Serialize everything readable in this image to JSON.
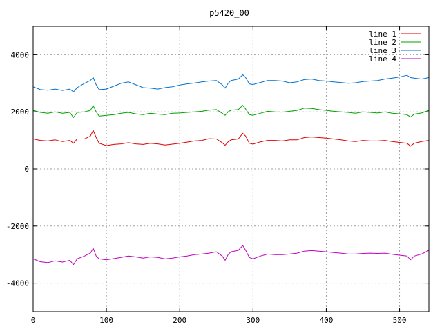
{
  "chart_data": {
    "type": "line",
    "title": "p5420_00",
    "xlabel": "",
    "ylabel": "",
    "xlim": [
      0,
      540
    ],
    "ylim": [
      -5000,
      5000
    ],
    "x_ticks": [
      0,
      100,
      200,
      300,
      400,
      500
    ],
    "y_ticks": [
      -4000,
      -2000,
      0,
      2000,
      4000
    ],
    "grid": true,
    "legend_position": "top-right",
    "series": [
      {
        "name": "line 1",
        "color": "#e00000",
        "points": [
          [
            0,
            1050
          ],
          [
            10,
            1000
          ],
          [
            20,
            980
          ],
          [
            30,
            1020
          ],
          [
            40,
            960
          ],
          [
            50,
            1000
          ],
          [
            55,
            900
          ],
          [
            60,
            1050
          ],
          [
            70,
            1050
          ],
          [
            78,
            1150
          ],
          [
            82,
            1350
          ],
          [
            86,
            1100
          ],
          [
            90,
            900
          ],
          [
            100,
            820
          ],
          [
            110,
            860
          ],
          [
            120,
            880
          ],
          [
            130,
            920
          ],
          [
            140,
            880
          ],
          [
            150,
            860
          ],
          [
            160,
            900
          ],
          [
            170,
            880
          ],
          [
            180,
            840
          ],
          [
            190,
            870
          ],
          [
            200,
            900
          ],
          [
            210,
            940
          ],
          [
            220,
            980
          ],
          [
            230,
            1000
          ],
          [
            240,
            1060
          ],
          [
            250,
            1050
          ],
          [
            258,
            920
          ],
          [
            262,
            830
          ],
          [
            266,
            950
          ],
          [
            270,
            1020
          ],
          [
            280,
            1050
          ],
          [
            286,
            1250
          ],
          [
            290,
            1150
          ],
          [
            295,
            900
          ],
          [
            300,
            870
          ],
          [
            310,
            950
          ],
          [
            320,
            1000
          ],
          [
            330,
            1000
          ],
          [
            340,
            980
          ],
          [
            350,
            1020
          ],
          [
            360,
            1020
          ],
          [
            370,
            1100
          ],
          [
            380,
            1120
          ],
          [
            390,
            1100
          ],
          [
            400,
            1080
          ],
          [
            410,
            1050
          ],
          [
            420,
            1020
          ],
          [
            430,
            980
          ],
          [
            440,
            960
          ],
          [
            450,
            1000
          ],
          [
            460,
            980
          ],
          [
            470,
            980
          ],
          [
            480,
            1000
          ],
          [
            490,
            960
          ],
          [
            500,
            930
          ],
          [
            510,
            900
          ],
          [
            515,
            800
          ],
          [
            520,
            900
          ],
          [
            530,
            960
          ],
          [
            540,
            1000
          ]
        ]
      },
      {
        "name": "line 2",
        "color": "#00a000",
        "points": [
          [
            0,
            2050
          ],
          [
            10,
            1980
          ],
          [
            20,
            1950
          ],
          [
            30,
            2000
          ],
          [
            40,
            1950
          ],
          [
            50,
            1980
          ],
          [
            55,
            1800
          ],
          [
            60,
            1980
          ],
          [
            70,
            2000
          ],
          [
            78,
            2050
          ],
          [
            82,
            2220
          ],
          [
            86,
            2000
          ],
          [
            90,
            1850
          ],
          [
            100,
            1880
          ],
          [
            110,
            1900
          ],
          [
            120,
            1950
          ],
          [
            130,
            1980
          ],
          [
            140,
            1930
          ],
          [
            150,
            1900
          ],
          [
            160,
            1950
          ],
          [
            170,
            1920
          ],
          [
            180,
            1900
          ],
          [
            190,
            1950
          ],
          [
            200,
            1960
          ],
          [
            210,
            1980
          ],
          [
            220,
            2000
          ],
          [
            230,
            2020
          ],
          [
            240,
            2060
          ],
          [
            250,
            2080
          ],
          [
            258,
            1950
          ],
          [
            262,
            1880
          ],
          [
            266,
            2000
          ],
          [
            270,
            2060
          ],
          [
            280,
            2080
          ],
          [
            286,
            2230
          ],
          [
            290,
            2100
          ],
          [
            295,
            1900
          ],
          [
            300,
            1880
          ],
          [
            310,
            1950
          ],
          [
            320,
            2020
          ],
          [
            330,
            2000
          ],
          [
            340,
            1990
          ],
          [
            350,
            2020
          ],
          [
            360,
            2050
          ],
          [
            370,
            2130
          ],
          [
            380,
            2120
          ],
          [
            390,
            2080
          ],
          [
            400,
            2050
          ],
          [
            410,
            2020
          ],
          [
            420,
            2000
          ],
          [
            430,
            1980
          ],
          [
            440,
            1950
          ],
          [
            450,
            2000
          ],
          [
            460,
            1980
          ],
          [
            470,
            1960
          ],
          [
            480,
            2000
          ],
          [
            490,
            1950
          ],
          [
            500,
            1930
          ],
          [
            510,
            1900
          ],
          [
            515,
            1820
          ],
          [
            520,
            1920
          ],
          [
            530,
            1960
          ],
          [
            540,
            2050
          ]
        ]
      },
      {
        "name": "line 3",
        "color": "#0070d0",
        "points": [
          [
            0,
            2880
          ],
          [
            10,
            2780
          ],
          [
            20,
            2760
          ],
          [
            30,
            2800
          ],
          [
            40,
            2750
          ],
          [
            50,
            2800
          ],
          [
            55,
            2700
          ],
          [
            60,
            2850
          ],
          [
            70,
            3000
          ],
          [
            78,
            3100
          ],
          [
            82,
            3200
          ],
          [
            86,
            2950
          ],
          [
            90,
            2780
          ],
          [
            100,
            2800
          ],
          [
            110,
            2900
          ],
          [
            120,
            3000
          ],
          [
            130,
            3050
          ],
          [
            140,
            2950
          ],
          [
            150,
            2850
          ],
          [
            160,
            2830
          ],
          [
            170,
            2800
          ],
          [
            180,
            2850
          ],
          [
            190,
            2880
          ],
          [
            200,
            2940
          ],
          [
            210,
            2980
          ],
          [
            220,
            3010
          ],
          [
            230,
            3050
          ],
          [
            240,
            3080
          ],
          [
            250,
            3100
          ],
          [
            258,
            2950
          ],
          [
            262,
            2830
          ],
          [
            266,
            3000
          ],
          [
            270,
            3100
          ],
          [
            280,
            3150
          ],
          [
            286,
            3300
          ],
          [
            290,
            3200
          ],
          [
            295,
            2980
          ],
          [
            300,
            2960
          ],
          [
            310,
            3030
          ],
          [
            320,
            3100
          ],
          [
            330,
            3100
          ],
          [
            340,
            3080
          ],
          [
            350,
            3020
          ],
          [
            360,
            3050
          ],
          [
            370,
            3130
          ],
          [
            380,
            3150
          ],
          [
            390,
            3100
          ],
          [
            400,
            3080
          ],
          [
            410,
            3050
          ],
          [
            420,
            3030
          ],
          [
            430,
            3000
          ],
          [
            440,
            3020
          ],
          [
            450,
            3060
          ],
          [
            460,
            3080
          ],
          [
            470,
            3100
          ],
          [
            480,
            3150
          ],
          [
            490,
            3180
          ],
          [
            500,
            3220
          ],
          [
            510,
            3280
          ],
          [
            515,
            3200
          ],
          [
            520,
            3180
          ],
          [
            530,
            3150
          ],
          [
            540,
            3200
          ]
        ]
      },
      {
        "name": "line 4",
        "color": "#c000c0",
        "points": [
          [
            0,
            -3150
          ],
          [
            10,
            -3250
          ],
          [
            20,
            -3280
          ],
          [
            30,
            -3220
          ],
          [
            40,
            -3260
          ],
          [
            50,
            -3200
          ],
          [
            55,
            -3350
          ],
          [
            60,
            -3150
          ],
          [
            70,
            -3050
          ],
          [
            78,
            -2950
          ],
          [
            82,
            -2780
          ],
          [
            86,
            -3050
          ],
          [
            90,
            -3150
          ],
          [
            100,
            -3180
          ],
          [
            110,
            -3140
          ],
          [
            120,
            -3100
          ],
          [
            130,
            -3050
          ],
          [
            140,
            -3080
          ],
          [
            150,
            -3120
          ],
          [
            160,
            -3080
          ],
          [
            170,
            -3100
          ],
          [
            180,
            -3150
          ],
          [
            190,
            -3120
          ],
          [
            200,
            -3080
          ],
          [
            210,
            -3050
          ],
          [
            220,
            -3000
          ],
          [
            230,
            -2980
          ],
          [
            240,
            -2950
          ],
          [
            250,
            -2900
          ],
          [
            258,
            -3050
          ],
          [
            262,
            -3200
          ],
          [
            266,
            -3000
          ],
          [
            270,
            -2900
          ],
          [
            280,
            -2850
          ],
          [
            286,
            -2680
          ],
          [
            290,
            -2850
          ],
          [
            295,
            -3100
          ],
          [
            300,
            -3150
          ],
          [
            310,
            -3050
          ],
          [
            320,
            -2980
          ],
          [
            330,
            -3000
          ],
          [
            340,
            -3000
          ],
          [
            350,
            -2980
          ],
          [
            360,
            -2950
          ],
          [
            370,
            -2880
          ],
          [
            380,
            -2860
          ],
          [
            390,
            -2880
          ],
          [
            400,
            -2900
          ],
          [
            410,
            -2930
          ],
          [
            420,
            -2950
          ],
          [
            430,
            -2980
          ],
          [
            440,
            -2980
          ],
          [
            450,
            -2960
          ],
          [
            460,
            -2950
          ],
          [
            470,
            -2960
          ],
          [
            480,
            -2950
          ],
          [
            490,
            -2990
          ],
          [
            500,
            -3020
          ],
          [
            510,
            -3050
          ],
          [
            515,
            -3180
          ],
          [
            520,
            -3050
          ],
          [
            530,
            -2980
          ],
          [
            540,
            -2850
          ]
        ]
      }
    ]
  }
}
